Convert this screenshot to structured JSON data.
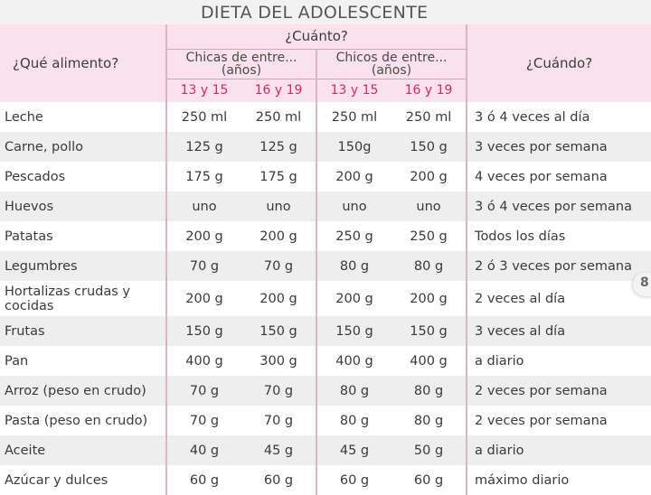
{
  "title": "DIETA DEL ADOLESCENTE",
  "page_number": "8",
  "header": {
    "food": "¿Qué alimento?",
    "how_much": "¿Cuánto?",
    "when": "¿Cuándo?",
    "groups": [
      {
        "line1": "Chicas de entre...",
        "line2": "(años)"
      },
      {
        "line1": "Chicos de entre...",
        "line2": "(años)"
      }
    ],
    "ages": [
      "13 y 15",
      "16 y 19",
      "13 y 15",
      "16 y 19"
    ]
  },
  "rows": [
    {
      "food": "Leche",
      "values": [
        "250 ml",
        "250 ml",
        "250 ml",
        "250 ml"
      ],
      "when": "3 ó 4 veces al día"
    },
    {
      "food": "Carne, pollo",
      "values": [
        "125 g",
        "125 g",
        "150g",
        "150 g"
      ],
      "when": "3 veces por semana"
    },
    {
      "food": "Pescados",
      "values": [
        "175 g",
        "175 g",
        "200 g",
        "200 g"
      ],
      "when": "4 veces por semana"
    },
    {
      "food": "Huevos",
      "values": [
        "uno",
        "uno",
        "uno",
        "uno"
      ],
      "when": "3 ó 4 veces por semana"
    },
    {
      "food": "Patatas",
      "values": [
        "200 g",
        "200 g",
        "250 g",
        "250 g"
      ],
      "when": "Todos los días"
    },
    {
      "food": "Legumbres",
      "values": [
        "70 g",
        "70 g",
        "80 g",
        "80 g"
      ],
      "when": "2 ó 3 veces por semana"
    },
    {
      "food": "Hortalizas crudas y cocidas",
      "values": [
        "200 g",
        "200 g",
        "200 g",
        "200 g"
      ],
      "when": "2 veces al día"
    },
    {
      "food": "Frutas",
      "values": [
        "150 g",
        "150 g",
        "150 g",
        "150 g"
      ],
      "when": "3 veces al día"
    },
    {
      "food": "Pan",
      "values": [
        "400 g",
        "300 g",
        "400 g",
        "400 g"
      ],
      "when": "a diario"
    },
    {
      "food": "Arroz (peso en crudo)",
      "values": [
        "70 g",
        "70 g",
        "80 g",
        "80 g"
      ],
      "when": "2 veces por semana"
    },
    {
      "food": "Pasta (peso en crudo)",
      "values": [
        "70 g",
        "70 g",
        "80 g",
        "80 g"
      ],
      "when": "2 veces por semana"
    },
    {
      "food": "Aceite",
      "values": [
        "40 g",
        "45 g",
        "45 g",
        "50 g"
      ],
      "when": "a diario"
    },
    {
      "food": "Azúcar y dulces",
      "values": [
        "60 g",
        "60 g",
        "60 g",
        "60 g"
      ],
      "when": "máximo diario"
    }
  ]
}
